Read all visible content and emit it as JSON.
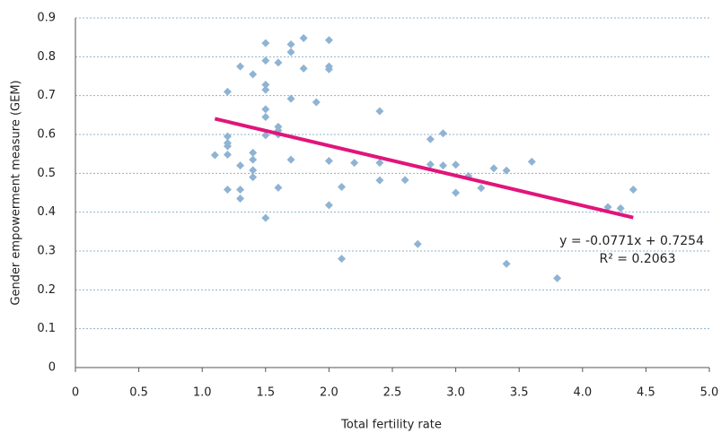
{
  "chart_data": {
    "type": "scatter",
    "x_label": "Total fertility rate",
    "y_label": "Gender empowerment measure (GEM)",
    "color": "#8fb3d3",
    "x": [
      1.1,
      1.2,
      1.2,
      1.2,
      1.2,
      1.2,
      1.2,
      1.3,
      1.3,
      1.3,
      1.3,
      1.4,
      1.4,
      1.4,
      1.4,
      1.4,
      1.5,
      1.5,
      1.5,
      1.5,
      1.5,
      1.5,
      1.5,
      1.5,
      1.6,
      1.6,
      1.6,
      1.6,
      1.6,
      1.7,
      1.7,
      1.7,
      1.7,
      1.8,
      1.8,
      1.9,
      2.0,
      2.0,
      2.0,
      2.0,
      2.0,
      2.1,
      2.1,
      2.2,
      2.4,
      2.4,
      2.4,
      2.6,
      2.7,
      2.8,
      2.8,
      2.9,
      2.9,
      3.0,
      3.0,
      3.1,
      3.2,
      3.3,
      3.4,
      3.4,
      3.6,
      3.8,
      4.2,
      4.3,
      4.4
    ],
    "values": [
      0.547,
      0.71,
      0.595,
      0.578,
      0.57,
      0.548,
      0.458,
      0.775,
      0.52,
      0.458,
      0.435,
      0.755,
      0.553,
      0.535,
      0.508,
      0.49,
      0.835,
      0.79,
      0.728,
      0.715,
      0.665,
      0.645,
      0.598,
      0.385,
      0.785,
      0.62,
      0.61,
      0.6,
      0.463,
      0.832,
      0.812,
      0.692,
      0.535,
      0.848,
      0.77,
      0.683,
      0.843,
      0.775,
      0.768,
      0.532,
      0.418,
      0.465,
      0.28,
      0.527,
      0.66,
      0.527,
      0.482,
      0.483,
      0.318,
      0.588,
      0.523,
      0.603,
      0.52,
      0.522,
      0.45,
      0.493,
      0.462,
      0.513,
      0.507,
      0.267,
      0.53,
      0.23,
      0.413,
      0.41,
      0.458
    ],
    "trendline": {
      "slope": -0.0771,
      "intercept": 0.7254,
      "x_range": [
        1.1,
        4.4
      ],
      "color": "#e0157b",
      "label": "y = -0.0771x + 0.7254",
      "r2_label": "R² = 0.2063"
    },
    "xlim": [
      0,
      5
    ],
    "xticks": [
      0,
      0.5,
      {
        "value": 1,
        "label": "1.0"
      },
      1.5,
      {
        "value": 2,
        "label": "2.0"
      },
      2.5,
      {
        "value": 3,
        "label": "3.0"
      },
      3.5,
      {
        "value": 4,
        "label": "4.0"
      },
      4.5,
      {
        "value": 5,
        "label": "5.0"
      }
    ],
    "ylim": [
      0,
      0.9
    ],
    "yticks": [
      0,
      0.1,
      0.2,
      0.3,
      0.4,
      0.5,
      0.6,
      0.7,
      0.8,
      0.9
    ],
    "grid": true
  }
}
